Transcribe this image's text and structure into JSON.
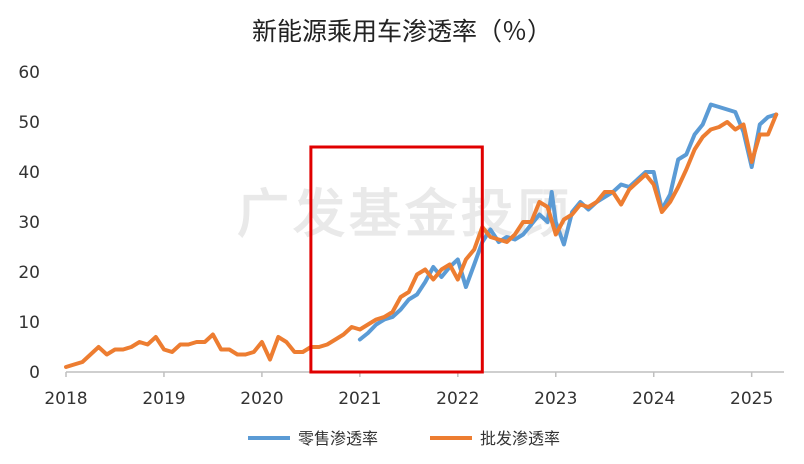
{
  "chart_data": {
    "type": "line",
    "title": "新能源乘用车渗透率（％）",
    "xlabel": "",
    "ylabel": "",
    "ylim": [
      0,
      60
    ],
    "yticks": [
      0,
      10,
      20,
      30,
      40,
      50,
      60
    ],
    "xlim": [
      2018,
      2025.33
    ],
    "xticks": [
      2018,
      2019,
      2020,
      2021,
      2022,
      2023,
      2024,
      2025
    ],
    "grid": false,
    "legend": "bottom",
    "watermark": "广发基金投顾",
    "series": [
      {
        "name": "零售渗透率",
        "color": "#5b9bd5",
        "points": [
          [
            2021.0,
            6.5
          ],
          [
            2021.083,
            7.8
          ],
          [
            2021.167,
            9.5
          ],
          [
            2021.25,
            10.5
          ],
          [
            2021.333,
            11.0
          ],
          [
            2021.417,
            12.5
          ],
          [
            2021.5,
            14.5
          ],
          [
            2021.583,
            15.5
          ],
          [
            2021.667,
            18.0
          ],
          [
            2021.75,
            21.0
          ],
          [
            2021.833,
            19.0
          ],
          [
            2021.917,
            21.0
          ],
          [
            2022.0,
            22.5
          ],
          [
            2022.083,
            17.0
          ],
          [
            2022.167,
            21.5
          ],
          [
            2022.25,
            26.0
          ],
          [
            2022.333,
            28.5
          ],
          [
            2022.417,
            26.0
          ],
          [
            2022.5,
            27.0
          ],
          [
            2022.583,
            26.5
          ],
          [
            2022.667,
            27.5
          ],
          [
            2022.75,
            29.5
          ],
          [
            2022.833,
            31.5
          ],
          [
            2022.917,
            30.0
          ],
          [
            2022.958,
            36.0
          ],
          [
            2023.0,
            30.0
          ],
          [
            2023.083,
            25.5
          ],
          [
            2023.167,
            32.0
          ],
          [
            2023.25,
            34.0
          ],
          [
            2023.333,
            32.5
          ],
          [
            2023.417,
            34.0
          ],
          [
            2023.5,
            35.0
          ],
          [
            2023.583,
            36.0
          ],
          [
            2023.667,
            37.5
          ],
          [
            2023.75,
            37.0
          ],
          [
            2023.833,
            38.5
          ],
          [
            2023.917,
            40.0
          ],
          [
            2024.0,
            40.0
          ],
          [
            2024.083,
            32.5
          ],
          [
            2024.167,
            35.5
          ],
          [
            2024.25,
            42.5
          ],
          [
            2024.333,
            43.5
          ],
          [
            2024.417,
            47.5
          ],
          [
            2024.5,
            49.5
          ],
          [
            2024.583,
            53.5
          ],
          [
            2024.667,
            53.0
          ],
          [
            2024.75,
            52.5
          ],
          [
            2024.833,
            52.0
          ],
          [
            2024.917,
            48.0
          ],
          [
            2025.0,
            41.0
          ],
          [
            2025.083,
            49.5
          ],
          [
            2025.167,
            51.0
          ],
          [
            2025.25,
            51.5
          ]
        ]
      },
      {
        "name": "批发渗透率",
        "color": "#ed7d31",
        "points": [
          [
            2018.0,
            1.0
          ],
          [
            2018.083,
            1.5
          ],
          [
            2018.167,
            2.0
          ],
          [
            2018.25,
            3.5
          ],
          [
            2018.333,
            5.0
          ],
          [
            2018.417,
            3.5
          ],
          [
            2018.5,
            4.5
          ],
          [
            2018.583,
            4.5
          ],
          [
            2018.667,
            5.0
          ],
          [
            2018.75,
            6.0
          ],
          [
            2018.833,
            5.5
          ],
          [
            2018.917,
            7.0
          ],
          [
            2019.0,
            4.5
          ],
          [
            2019.083,
            4.0
          ],
          [
            2019.167,
            5.5
          ],
          [
            2019.25,
            5.5
          ],
          [
            2019.333,
            6.0
          ],
          [
            2019.417,
            6.0
          ],
          [
            2019.5,
            7.5
          ],
          [
            2019.583,
            4.5
          ],
          [
            2019.667,
            4.5
          ],
          [
            2019.75,
            3.5
          ],
          [
            2019.833,
            3.5
          ],
          [
            2019.917,
            4.0
          ],
          [
            2020.0,
            6.0
          ],
          [
            2020.083,
            2.5
          ],
          [
            2020.167,
            7.0
          ],
          [
            2020.25,
            6.0
          ],
          [
            2020.333,
            4.0
          ],
          [
            2020.417,
            4.0
          ],
          [
            2020.5,
            5.0
          ],
          [
            2020.583,
            5.0
          ],
          [
            2020.667,
            5.5
          ],
          [
            2020.75,
            6.5
          ],
          [
            2020.833,
            7.5
          ],
          [
            2020.917,
            9.0
          ],
          [
            2021.0,
            8.5
          ],
          [
            2021.083,
            9.5
          ],
          [
            2021.167,
            10.5
          ],
          [
            2021.25,
            11.0
          ],
          [
            2021.333,
            12.0
          ],
          [
            2021.417,
            15.0
          ],
          [
            2021.5,
            16.0
          ],
          [
            2021.583,
            19.5
          ],
          [
            2021.667,
            20.5
          ],
          [
            2021.75,
            18.5
          ],
          [
            2021.833,
            20.5
          ],
          [
            2021.917,
            21.5
          ],
          [
            2022.0,
            18.5
          ],
          [
            2022.083,
            22.5
          ],
          [
            2022.167,
            24.5
          ],
          [
            2022.25,
            29.0
          ],
          [
            2022.333,
            27.0
          ],
          [
            2022.417,
            26.5
          ],
          [
            2022.5,
            26.0
          ],
          [
            2022.583,
            27.5
          ],
          [
            2022.667,
            30.0
          ],
          [
            2022.75,
            30.0
          ],
          [
            2022.833,
            34.0
          ],
          [
            2022.917,
            33.0
          ],
          [
            2023.0,
            27.5
          ],
          [
            2023.083,
            30.5
          ],
          [
            2023.167,
            31.5
          ],
          [
            2023.25,
            33.5
          ],
          [
            2023.333,
            33.0
          ],
          [
            2023.417,
            34.0
          ],
          [
            2023.5,
            36.0
          ],
          [
            2023.583,
            36.0
          ],
          [
            2023.667,
            33.5
          ],
          [
            2023.75,
            36.5
          ],
          [
            2023.833,
            38.0
          ],
          [
            2023.917,
            39.5
          ],
          [
            2024.0,
            37.5
          ],
          [
            2024.083,
            32.0
          ],
          [
            2024.167,
            34.0
          ],
          [
            2024.25,
            37.0
          ],
          [
            2024.333,
            40.5
          ],
          [
            2024.417,
            44.5
          ],
          [
            2024.5,
            47.0
          ],
          [
            2024.583,
            48.5
          ],
          [
            2024.667,
            49.0
          ],
          [
            2024.75,
            50.0
          ],
          [
            2024.833,
            48.5
          ],
          [
            2024.917,
            49.5
          ],
          [
            2025.0,
            42.0
          ],
          [
            2025.083,
            47.5
          ],
          [
            2025.167,
            47.5
          ],
          [
            2025.25,
            51.5
          ]
        ]
      }
    ],
    "highlight": {
      "x_range": [
        2020.5,
        2022.25
      ],
      "y_range": [
        0,
        45
      ],
      "color": "#e00000"
    }
  }
}
